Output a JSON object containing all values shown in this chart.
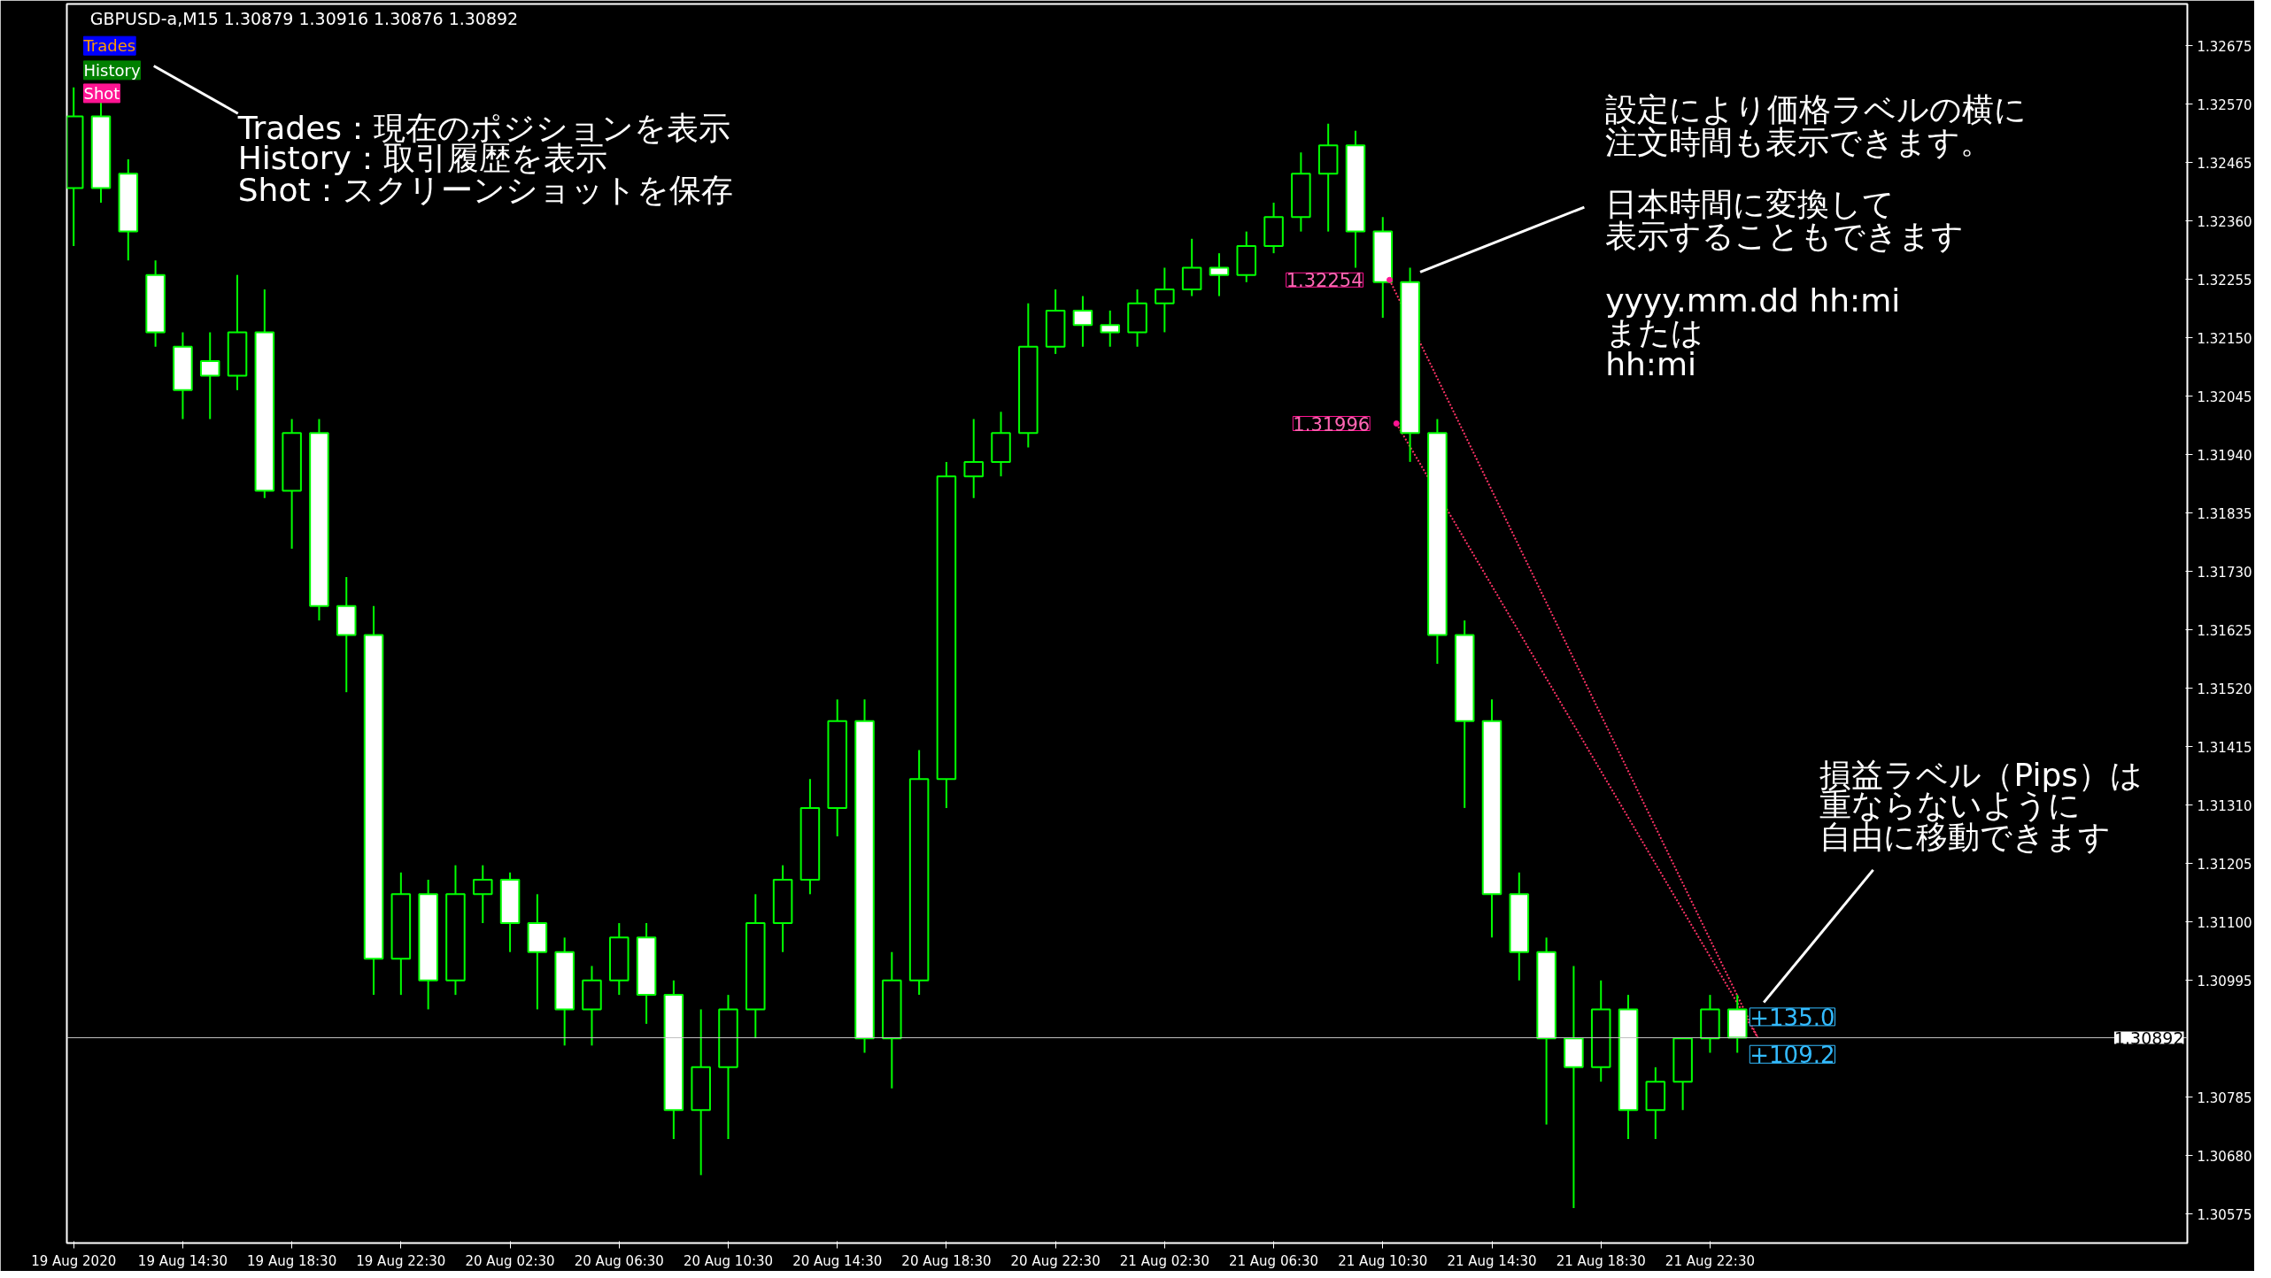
{
  "chart_data": {
    "type": "candlestick",
    "title": "GBPUSD-a,M15  1.30879 1.30916 1.30876 1.30892",
    "color": "#00ff00",
    "x": [
      "2020-08-19T10:30",
      "2020-08-19T11:30",
      "2020-08-19T12:30",
      "2020-08-19T13:30",
      "2020-08-19T14:30",
      "2020-08-19T15:30",
      "2020-08-19T16:30",
      "2020-08-19T17:30",
      "2020-08-19T18:30",
      "2020-08-19T19:30",
      "2020-08-19T20:30",
      "2020-08-19T21:30",
      "2020-08-19T22:30",
      "2020-08-19T23:30",
      "2020-08-20T00:30",
      "2020-08-20T01:30",
      "2020-08-20T02:30",
      "2020-08-20T03:30",
      "2020-08-20T04:30",
      "2020-08-20T05:30",
      "2020-08-20T06:30",
      "2020-08-20T07:30",
      "2020-08-20T08:30",
      "2020-08-20T09:30",
      "2020-08-20T10:30",
      "2020-08-20T11:30",
      "2020-08-20T12:30",
      "2020-08-20T13:30",
      "2020-08-20T14:30",
      "2020-08-20T15:30",
      "2020-08-20T16:30",
      "2020-08-20T17:30",
      "2020-08-20T18:30",
      "2020-08-20T19:30",
      "2020-08-20T20:30",
      "2020-08-20T21:30",
      "2020-08-20T22:30",
      "2020-08-20T23:30",
      "2020-08-21T00:30",
      "2020-08-21T01:30",
      "2020-08-21T02:30",
      "2020-08-21T03:30",
      "2020-08-21T04:30",
      "2020-08-21T05:30",
      "2020-08-21T06:30",
      "2020-08-21T07:30",
      "2020-08-21T08:30",
      "2020-08-21T09:30",
      "2020-08-21T10:30",
      "2020-08-21T11:30",
      "2020-08-21T12:30",
      "2020-08-21T13:30",
      "2020-08-21T14:30",
      "2020-08-21T15:30",
      "2020-08-21T16:30",
      "2020-08-21T17:30",
      "2020-08-21T18:30",
      "2020-08-21T19:30",
      "2020-08-21T20:30",
      "2020-08-21T21:30",
      "2020-08-21T22:30",
      "2020-08-21T23:30"
    ],
    "ohlc": [
      [
        1.32419,
        1.326,
        1.32315,
        1.32548
      ],
      [
        1.32548,
        1.32574,
        1.32393,
        1.32419
      ],
      [
        1.32445,
        1.32471,
        1.32289,
        1.32341
      ],
      [
        1.32263,
        1.32289,
        1.32134,
        1.3216
      ],
      [
        1.32134,
        1.3216,
        1.32004,
        1.32056
      ],
      [
        1.32108,
        1.3216,
        1.32004,
        1.32082
      ],
      [
        1.32082,
        1.32263,
        1.32056,
        1.3216
      ],
      [
        1.3216,
        1.32237,
        1.31862,
        1.31875
      ],
      [
        1.31875,
        1.32004,
        1.31771,
        1.31979
      ],
      [
        1.31979,
        1.32004,
        1.31642,
        1.31668
      ],
      [
        1.31668,
        1.3172,
        1.31513,
        1.31616
      ],
      [
        1.31616,
        1.31668,
        1.30969,
        1.31034
      ],
      [
        1.31034,
        1.31189,
        1.30969,
        1.3115
      ],
      [
        1.3115,
        1.31176,
        1.30943,
        1.30995
      ],
      [
        1.30995,
        1.31202,
        1.30969,
        1.3115
      ],
      [
        1.3115,
        1.31202,
        1.31098,
        1.31176
      ],
      [
        1.31176,
        1.31189,
        1.31046,
        1.31098
      ],
      [
        1.31098,
        1.3115,
        1.30943,
        1.31046
      ],
      [
        1.31046,
        1.31072,
        1.30878,
        1.30943
      ],
      [
        1.30943,
        1.31021,
        1.30878,
        1.30995
      ],
      [
        1.30995,
        1.31098,
        1.30969,
        1.31072
      ],
      [
        1.31072,
        1.31098,
        1.30917,
        1.30969
      ],
      [
        1.30969,
        1.30995,
        1.3071,
        1.30762
      ],
      [
        1.30762,
        1.30943,
        1.30645,
        1.30839
      ],
      [
        1.30839,
        1.30969,
        1.3071,
        1.30943
      ],
      [
        1.30943,
        1.3115,
        1.30891,
        1.31098
      ],
      [
        1.31098,
        1.31202,
        1.31046,
        1.31176
      ],
      [
        1.31176,
        1.31357,
        1.3115,
        1.31305
      ],
      [
        1.31305,
        1.315,
        1.31254,
        1.31461
      ],
      [
        1.31461,
        1.315,
        1.30865,
        1.30891
      ],
      [
        1.30891,
        1.31046,
        1.30801,
        1.30995
      ],
      [
        1.30995,
        1.31409,
        1.30969,
        1.31357
      ],
      [
        1.31357,
        1.31927,
        1.31305,
        1.31901
      ],
      [
        1.31901,
        1.32004,
        1.31862,
        1.31927
      ],
      [
        1.31927,
        1.32017,
        1.31901,
        1.31979
      ],
      [
        1.31979,
        1.32212,
        1.31953,
        1.32134
      ],
      [
        1.32134,
        1.32237,
        1.32121,
        1.32199
      ],
      [
        1.32199,
        1.32225,
        1.32134,
        1.32173
      ],
      [
        1.32173,
        1.32199,
        1.32134,
        1.3216
      ],
      [
        1.3216,
        1.32237,
        1.32134,
        1.32212
      ],
      [
        1.32212,
        1.32276,
        1.3216,
        1.32237
      ],
      [
        1.32237,
        1.32328,
        1.32225,
        1.32276
      ],
      [
        1.32276,
        1.32302,
        1.32225,
        1.32263
      ],
      [
        1.32263,
        1.32341,
        1.3225,
        1.32315
      ],
      [
        1.32315,
        1.32393,
        1.32302,
        1.32367
      ],
      [
        1.32367,
        1.32483,
        1.32341,
        1.32445
      ],
      [
        1.32445,
        1.32535,
        1.32341,
        1.32496
      ],
      [
        1.32496,
        1.32522,
        1.32276,
        1.32341
      ],
      [
        1.32341,
        1.32367,
        1.32186,
        1.3225
      ],
      [
        1.3225,
        1.32276,
        1.31927,
        1.31979
      ],
      [
        1.31979,
        1.32004,
        1.31564,
        1.31616
      ],
      [
        1.31616,
        1.31642,
        1.31305,
        1.31461
      ],
      [
        1.31461,
        1.315,
        1.31072,
        1.3115
      ],
      [
        1.3115,
        1.31189,
        1.30995,
        1.31046
      ],
      [
        1.31046,
        1.31072,
        1.30736,
        1.30891
      ],
      [
        1.30891,
        1.31021,
        1.30586,
        1.30839
      ],
      [
        1.30839,
        1.30995,
        1.30813,
        1.30943
      ],
      [
        1.30943,
        1.30969,
        1.3071,
        1.30762
      ],
      [
        1.30762,
        1.30839,
        1.3071,
        1.30813
      ],
      [
        1.30813,
        1.30891,
        1.30762,
        1.30891
      ],
      [
        1.30891,
        1.30969,
        1.30865,
        1.30943
      ],
      [
        1.30943,
        1.30969,
        1.30865,
        1.30892
      ]
    ],
    "series": [
      {
        "type": "line",
        "x": [
          "2020-08-21T10:45",
          "2020-08-22T00:15"
        ],
        "values": [
          1.32254,
          1.30892
        ],
        "color": "#ff3366",
        "line_style": "dotted"
      },
      {
        "type": "line",
        "x": [
          "2020-08-21T11:00",
          "2020-08-22T00:15"
        ],
        "values": [
          1.31996,
          1.30892
        ],
        "color": "#ff3366",
        "line_style": "dotted"
      }
    ],
    "ref_lines": [
      {
        "axis": "y",
        "value": 1.30892,
        "label": "1.30892",
        "color": "#c0c0c0"
      }
    ],
    "annotations": [
      "Trades",
      "History",
      "Shot",
      "Trades：現在のポジションを表示",
      "History：取引履歴を表示",
      "Shot：スクリーンショットを保存",
      "設定により価格ラベルの横に",
      "注文時間も表示できます。",
      "日本時間に変換して",
      "表示することもできます",
      "yyyy.mm.dd hh:mi",
      "または",
      "hh:mi",
      "損益ラベル（Pips）は",
      "重ならないように",
      "自由に移動できます",
      "+135.0",
      "+109.2",
      {
        "text": "1.32254",
        "x": "2020-08-21T10:45",
        "y": 1.32254
      },
      {
        "text": "1.31996",
        "x": "2020-08-21T11:00",
        "y": 1.31996
      }
    ],
    "xlim": [
      "2020-08-19T10:15",
      "2020-08-22T16:00"
    ],
    "xticks": [
      {
        "value": "2020-08-19T10:30",
        "label": "19 Aug 2020"
      },
      {
        "value": "2020-08-19T14:30",
        "label": "19 Aug 14:30"
      },
      {
        "value": "2020-08-19T18:30",
        "label": "19 Aug 18:30"
      },
      {
        "value": "2020-08-19T22:30",
        "label": "19 Aug 22:30"
      },
      {
        "value": "2020-08-20T02:30",
        "label": "20 Aug 02:30"
      },
      {
        "value": "2020-08-20T06:30",
        "label": "20 Aug 06:30"
      },
      {
        "value": "2020-08-20T10:30",
        "label": "20 Aug 10:30"
      },
      {
        "value": "2020-08-20T14:30",
        "label": "20 Aug 14:30"
      },
      {
        "value": "2020-08-20T18:30",
        "label": "20 Aug 18:30"
      },
      {
        "value": "2020-08-20T22:30",
        "label": "20 Aug 22:30"
      },
      {
        "value": "2020-08-21T02:30",
        "label": "21 Aug 02:30"
      },
      {
        "value": "2020-08-21T06:30",
        "label": "21 Aug 06:30"
      },
      {
        "value": "2020-08-21T10:30",
        "label": "21 Aug 10:30"
      },
      {
        "value": "2020-08-21T14:30",
        "label": "21 Aug 14:30"
      },
      {
        "value": "2020-08-21T18:30",
        "label": "21 Aug 18:30"
      },
      {
        "value": "2020-08-21T22:30",
        "label": "21 Aug 22:30"
      }
    ],
    "ylim": [
      1.30523,
      1.3275
    ],
    "yticks": [
      {
        "value": 1.30575,
        "label": "1.30575"
      },
      {
        "value": 1.3068,
        "label": "1.30680"
      },
      {
        "value": 1.30785,
        "label": "1.30785"
      },
      {
        "value": 1.30995,
        "label": "1.30995"
      },
      {
        "value": 1.311,
        "label": "1.31100"
      },
      {
        "value": 1.31205,
        "label": "1.31205"
      },
      {
        "value": 1.3131,
        "label": "1.31310"
      },
      {
        "value": 1.31415,
        "label": "1.31415"
      },
      {
        "value": 1.3152,
        "label": "1.31520"
      },
      {
        "value": 1.31625,
        "label": "1.31625"
      },
      {
        "value": 1.3173,
        "label": "1.31730"
      },
      {
        "value": 1.31835,
        "label": "1.31835"
      },
      {
        "value": 1.3194,
        "label": "1.31940"
      },
      {
        "value": 1.32045,
        "label": "1.32045"
      },
      {
        "value": 1.3215,
        "label": "1.32150"
      },
      {
        "value": 1.32255,
        "label": "1.32255"
      },
      {
        "value": 1.3236,
        "label": "1.32360"
      },
      {
        "value": 1.32465,
        "label": "1.32465"
      },
      {
        "value": 1.3257,
        "label": "1.32570"
      },
      {
        "value": 1.32675,
        "label": "1.32675"
      }
    ],
    "grid": false
  }
}
